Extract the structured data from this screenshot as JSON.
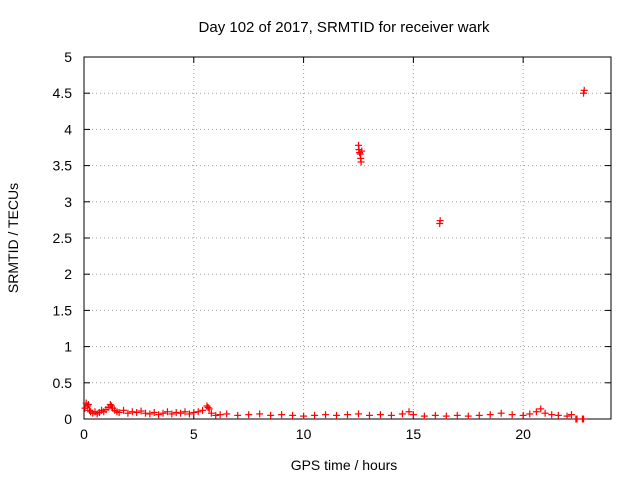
{
  "chart_data": {
    "type": "scatter",
    "title": "Day 102 of 2017, SRMTID for receiver wark",
    "xlabel": "GPS time / hours",
    "ylabel": "SRMTID / TECUs",
    "xlim": [
      0,
      24
    ],
    "ylim": [
      0,
      5
    ],
    "x_ticks": [
      0,
      5,
      10,
      15,
      20
    ],
    "y_ticks": [
      0,
      0.5,
      1,
      1.5,
      2,
      2.5,
      3,
      3.5,
      4,
      4.5,
      5
    ],
    "x_tick_labels": [
      "0",
      "5",
      "10",
      "15",
      "20"
    ],
    "y_tick_labels": [
      "0",
      "0.5",
      "1",
      "1.5",
      "2",
      "2.5",
      "3",
      "3.5",
      "4",
      "4.5",
      "5"
    ],
    "grid": true,
    "marker": "+",
    "color": "#ff0000",
    "series": [
      {
        "x": [
          0.05,
          0.1,
          0.15,
          0.2,
          0.25,
          0.3,
          0.4,
          0.5,
          0.6,
          0.7,
          0.8,
          0.9,
          1.0,
          1.1,
          1.2,
          1.25,
          1.3,
          1.4,
          1.5,
          1.6,
          1.8,
          2.0,
          2.2,
          2.4,
          2.6,
          2.8,
          3.0,
          3.2,
          3.4,
          3.6,
          3.8,
          4.0,
          4.2,
          4.4,
          4.6,
          4.8,
          5.0,
          5.2,
          5.4,
          5.6,
          5.65,
          5.7,
          5.8,
          6.0,
          6.2,
          6.5,
          7.0,
          7.5,
          8.0,
          8.5,
          9.0,
          9.5,
          10.0,
          10.5,
          11.0,
          11.5,
          12.0,
          12.5,
          13.0,
          13.5,
          14.0,
          14.5,
          14.8,
          15.0,
          15.5,
          16.0,
          16.5,
          17.0,
          17.5,
          18.0,
          18.5,
          19.0,
          19.5,
          20.0,
          20.3,
          20.6,
          20.8,
          21.0,
          21.3,
          21.6,
          22.0,
          22.2,
          12.5,
          12.52,
          12.55,
          12.58,
          12.6,
          12.62,
          12.65,
          16.2,
          16.22,
          22.75,
          22.78,
          22.4,
          22.45,
          22.7,
          22.75
        ],
        "y": [
          0.15,
          0.22,
          0.18,
          0.2,
          0.12,
          0.1,
          0.08,
          0.1,
          0.07,
          0.09,
          0.12,
          0.1,
          0.13,
          0.16,
          0.2,
          0.18,
          0.15,
          0.12,
          0.1,
          0.09,
          0.12,
          0.08,
          0.1,
          0.09,
          0.11,
          0.08,
          0.07,
          0.09,
          0.06,
          0.08,
          0.1,
          0.07,
          0.09,
          0.08,
          0.1,
          0.07,
          0.09,
          0.1,
          0.12,
          0.18,
          0.16,
          0.14,
          0.08,
          0.05,
          0.06,
          0.07,
          0.05,
          0.06,
          0.07,
          0.05,
          0.06,
          0.05,
          0.04,
          0.05,
          0.06,
          0.05,
          0.06,
          0.07,
          0.05,
          0.06,
          0.05,
          0.07,
          0.1,
          0.06,
          0.04,
          0.05,
          0.04,
          0.05,
          0.04,
          0.05,
          0.06,
          0.08,
          0.06,
          0.05,
          0.07,
          0.1,
          0.14,
          0.08,
          0.06,
          0.05,
          0.04,
          0.06,
          3.78,
          3.72,
          3.68,
          3.66,
          3.6,
          3.55,
          3.7,
          2.7,
          2.74,
          4.5,
          4.54,
          0.0,
          0.0,
          0.0,
          0.0
        ]
      }
    ]
  }
}
